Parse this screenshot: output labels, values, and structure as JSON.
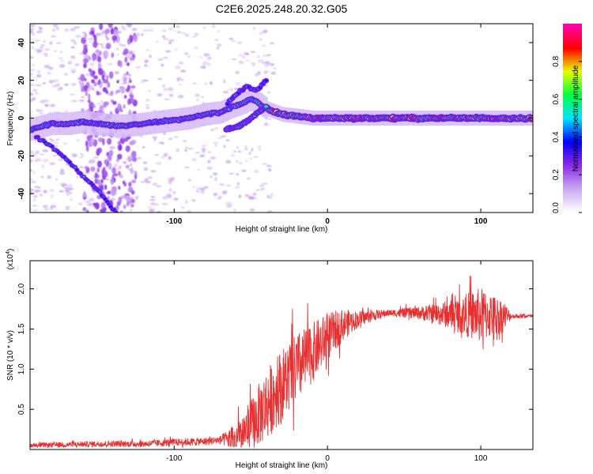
{
  "figure": {
    "title": "C2E6.2025.248.20.32.G05"
  },
  "chart_data": [
    {
      "type": "heatmap",
      "title": "C2E6.2025.248.20.32.G05",
      "xlabel": "Height of straight line (km)",
      "ylabel": "Frequency (Hz)",
      "xlim": [
        -194,
        134
      ],
      "ylim": [
        -50,
        50
      ],
      "xticks": [
        -100,
        0,
        100
      ],
      "xtick_labels": [
        "-100",
        "0",
        "100"
      ],
      "yticks": [
        -40,
        -20,
        0,
        20,
        40
      ],
      "ytick_labels": [
        "-40",
        "-20",
        "0",
        "20",
        "40"
      ],
      "colorbar": {
        "label": "Normalized spectral amplitude",
        "range": [
          0,
          1
        ],
        "ticks": [
          0.0,
          0.2,
          0.4,
          0.6,
          0.8
        ],
        "tick_labels": [
          "0.0",
          "0.2",
          "0.4",
          "0.6",
          "0.8"
        ],
        "colors": [
          "#ffffff",
          "#c9a8f5",
          "#8a2be2",
          "#0000ff",
          "#00e5ff",
          "#00ff40",
          "#e8ff00",
          "#ff0000",
          "#ff00b0"
        ]
      },
      "tracks": [
        {
          "name": "main-doppler-track",
          "points": [
            [
              -194,
              -6
            ],
            [
              -180,
              -3
            ],
            [
              -170,
              -3
            ],
            [
              -160,
              -2
            ],
            [
              -150,
              -3
            ],
            [
              -140,
              -4
            ],
            [
              -130,
              -4
            ],
            [
              -120,
              -3
            ],
            [
              -110,
              -2
            ],
            [
              -100,
              -1
            ],
            [
              -90,
              0
            ],
            [
              -80,
              2
            ],
            [
              -70,
              3
            ],
            [
              -62,
              6
            ],
            [
              -55,
              8
            ],
            [
              -50,
              10
            ],
            [
              -45,
              8
            ],
            [
              -40,
              5
            ],
            [
              -30,
              2
            ],
            [
              -20,
              1
            ],
            [
              -10,
              0
            ],
            [
              0,
              0
            ],
            [
              20,
              0
            ],
            [
              40,
              0
            ],
            [
              60,
              0
            ],
            [
              80,
              0
            ],
            [
              100,
              0
            ],
            [
              120,
              0
            ],
            [
              134,
              0
            ]
          ]
        },
        {
          "name": "lower-branch-track",
          "points": [
            [
              -66,
              -6
            ],
            [
              -60,
              -5
            ],
            [
              -55,
              -3
            ],
            [
              -50,
              0
            ],
            [
              -45,
              3
            ],
            [
              -40,
              6
            ]
          ]
        },
        {
          "name": "descending-trace",
          "points": [
            [
              -190,
              -10
            ],
            [
              -180,
              -15
            ],
            [
              -170,
              -22
            ],
            [
              -162,
              -29
            ],
            [
              -155,
              -34
            ],
            [
              -150,
              -38
            ],
            [
              -142,
              -46
            ],
            [
              -138,
              -50
            ]
          ]
        },
        {
          "name": "upper-spike-trace",
          "points": [
            [
              -65,
              8
            ],
            [
              -60,
              12
            ],
            [
              -56,
              15
            ],
            [
              -52,
              17
            ],
            [
              -48,
              15
            ],
            [
              -44,
              16
            ],
            [
              -40,
              20
            ]
          ]
        }
      ]
    },
    {
      "type": "line",
      "xlabel": "Height of straight line (km)",
      "ylabel": "SNR (10 * v/v)",
      "y_multiplier": "(x10",
      "y_exponent": "4",
      "y_multiplier_close": ")",
      "xlim": [
        -194,
        134
      ],
      "ylim": [
        0,
        2.35
      ],
      "xticks": [
        -100,
        0,
        100
      ],
      "xtick_labels": [
        "-100",
        "0",
        "100"
      ],
      "yticks": [
        0.5,
        1.0,
        1.5,
        2.0
      ],
      "ytick_labels": [
        "0.5",
        "1.0",
        "1.5",
        "2.0"
      ],
      "series": [
        {
          "name": "SNR",
          "color": "#e83030",
          "envelope": [
            [
              -194,
              0.05
            ],
            [
              -150,
              0.07
            ],
            [
              -120,
              0.07
            ],
            [
              -100,
              0.09
            ],
            [
              -80,
              0.1
            ],
            [
              -70,
              0.12
            ],
            [
              -60,
              0.14
            ],
            [
              -50,
              0.3
            ],
            [
              -40,
              0.55
            ],
            [
              -30,
              0.8
            ],
            [
              -20,
              1.0
            ],
            [
              -10,
              1.2
            ],
            [
              0,
              1.4
            ],
            [
              10,
              1.55
            ],
            [
              20,
              1.62
            ],
            [
              30,
              1.67
            ],
            [
              40,
              1.7
            ],
            [
              60,
              1.7
            ],
            [
              80,
              1.68
            ],
            [
              100,
              1.67
            ],
            [
              120,
              1.66
            ],
            [
              134,
              1.66
            ]
          ],
          "noise": [
            [
              -194,
              0.03
            ],
            [
              -70,
              0.05
            ],
            [
              -55,
              0.25
            ],
            [
              -40,
              0.45
            ],
            [
              -20,
              0.45
            ],
            [
              0,
              0.3
            ],
            [
              20,
              0.1
            ],
            [
              40,
              0.04
            ],
            [
              60,
              0.08
            ],
            [
              80,
              0.18
            ],
            [
              100,
              0.35
            ],
            [
              115,
              0.2
            ],
            [
              120,
              0.03
            ],
            [
              134,
              0.02
            ]
          ]
        }
      ]
    }
  ]
}
